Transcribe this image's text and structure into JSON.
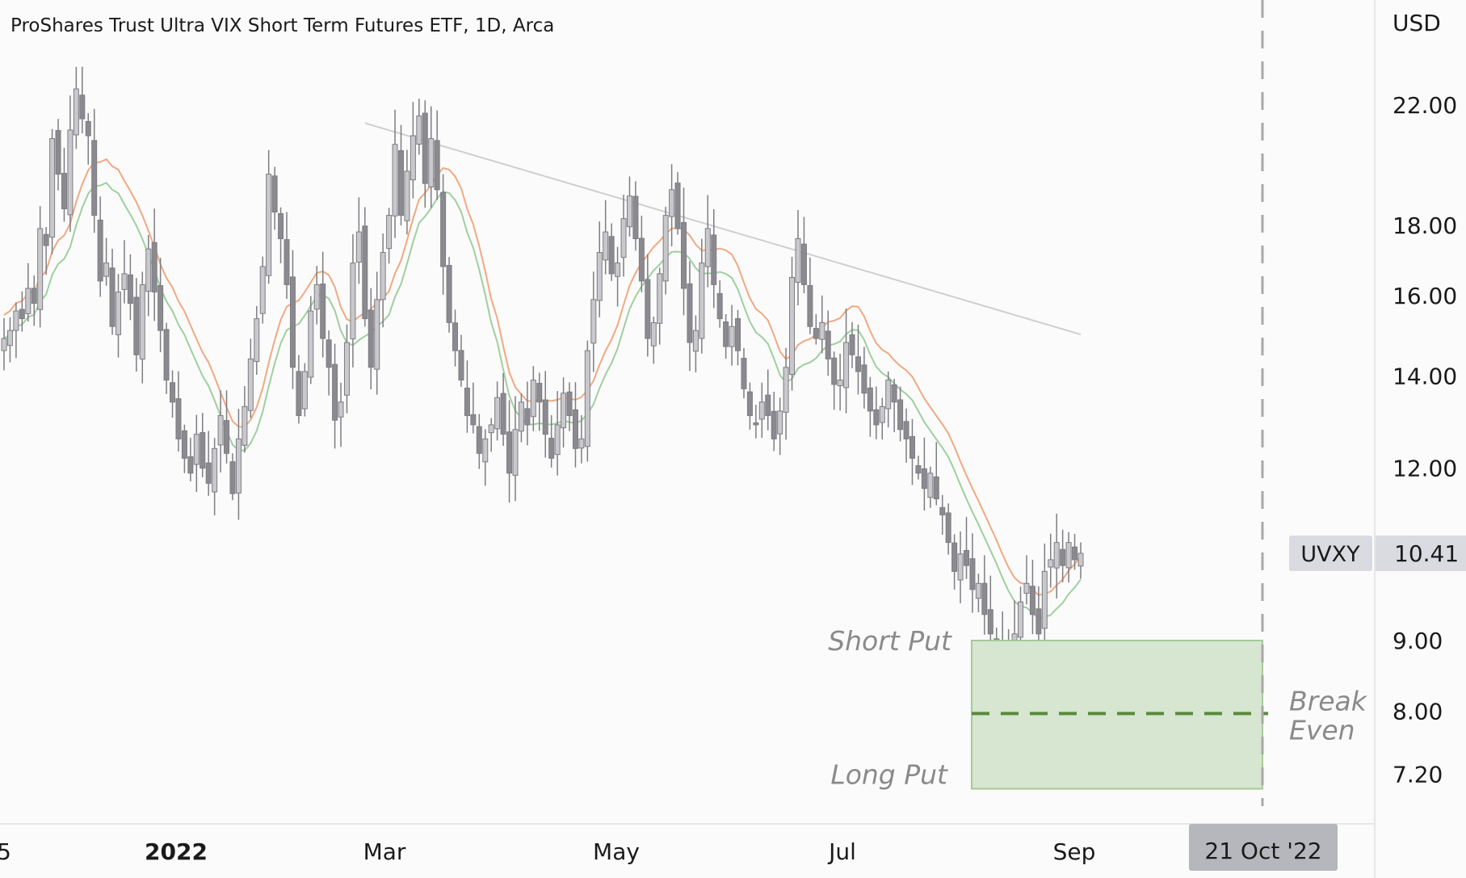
{
  "header": {
    "title": "ProShares Trust Ultra VIX Short Term Futures ETF, 1D, Arca",
    "currency": "USD"
  },
  "colors": {
    "candle_up": "#c9c9cd",
    "candle_down": "#8a8a90",
    "ma_gray": "#cfcfcf",
    "ma_orange": "#f0a982",
    "ma_green": "#9fcf9f",
    "zone_fill": "#d6e6d0",
    "zone_border": "#a6c99a",
    "break_even_line": "#5a8a3c",
    "expiry_line": "#a8a8a8",
    "badge_bg": "#d9dbe0",
    "date_badge_bg": "#b5b7bc"
  },
  "chart_data": {
    "type": "candlestick",
    "title": "ProShares Trust Ultra VIX Short Term Futures ETF, 1D, Arca",
    "scale": "log",
    "ylim": [
      6.8,
      24.4
    ],
    "y_ticks": [
      "22.00",
      "18.00",
      "16.00",
      "14.00",
      "12.00",
      "9.00",
      "8.00",
      "7.20"
    ],
    "x_ticks": [
      "5",
      "2022",
      "Mar",
      "May",
      "Jul",
      "Sep"
    ],
    "x_ticks_bold": [
      "2022"
    ],
    "symbol": "UVXY",
    "last_price": "10.41",
    "ohlc_daily_approx": [
      14.9,
      15.1,
      15.6,
      15.4,
      16.2,
      15.8,
      17.9,
      17.4,
      20.8,
      19.6,
      18.5,
      21.1,
      22.6,
      21.5,
      20.9,
      18.3,
      16.4,
      16.9,
      15.2,
      16.1,
      16.6,
      15.8,
      14.5,
      16.3,
      17.3,
      16.1,
      15.1,
      13.9,
      13.4,
      12.6,
      12.2,
      11.9,
      12.7,
      12.0,
      11.7,
      12.4,
      13.1,
      12.3,
      11.5,
      12.6,
      13.3,
      14.4,
      15.4,
      16.8,
      19.6,
      18.4,
      17.6,
      16.3,
      14.2,
      13.1,
      14.1,
      15.6,
      16.3,
      14.9,
      14.2,
      13.0,
      13.4,
      14.8,
      16.9,
      17.8,
      15.4,
      14.2,
      15.9,
      17.2,
      18.3,
      20.6,
      18.3,
      19.7,
      20.9,
      21.6,
      19.3,
      20.8,
      19.1,
      16.8,
      15.3,
      14.6,
      13.9,
      13.1,
      12.9,
      12.3,
      12.6,
      12.9,
      13.5,
      12.7,
      11.9,
      12.8,
      13.4,
      12.9,
      13.9,
      13.4,
      12.7,
      12.2,
      12.9,
      13.6,
      13.1,
      12.4,
      12.6,
      14.6,
      15.9,
      17.2,
      17.8,
      16.6,
      16.9,
      18.2,
      18.9,
      17.6,
      16.4,
      14.9,
      15.3,
      16.6,
      18.3,
      19.1,
      17.9,
      16.2,
      14.8,
      15.1,
      16.9,
      17.9,
      16.3,
      15.4,
      14.7,
      15.2,
      14.6,
      13.7,
      13.1,
      12.9,
      13.4,
      13.1,
      12.6,
      13.2,
      14.2,
      16.5,
      17.6,
      16.3,
      15.2,
      14.9,
      15.3,
      14.4,
      13.8,
      13.9,
      14.8,
      14.5,
      14.1,
      13.6,
      13.2,
      12.9,
      13.3,
      13.9,
      13.4,
      12.8,
      12.6,
      12.2,
      11.9,
      11.6,
      11.9,
      11.4,
      11.1,
      10.6,
      10.1,
      10.4,
      10.2,
      9.8,
      9.9,
      9.4,
      9.1,
      8.9,
      9.0,
      8.8,
      9.1,
      9.6,
      9.9,
      9.4,
      9.1,
      10.1,
      10.3,
      10.6,
      10.2,
      10.6,
      10.3,
      10.41
    ]
  },
  "legend": {
    "badge_symbol": "UVXY",
    "badge_price": "10.41",
    "date_badge": "21 Oct '22"
  },
  "annotations": {
    "short_put": {
      "label": "Short Put",
      "price": 9.0
    },
    "break_even": {
      "label_line1": "Break",
      "label_line2": "Even",
      "price": 8.0
    },
    "long_put": {
      "label": "Long Put",
      "price": 7.2
    },
    "expiry": "21 Oct '22"
  }
}
